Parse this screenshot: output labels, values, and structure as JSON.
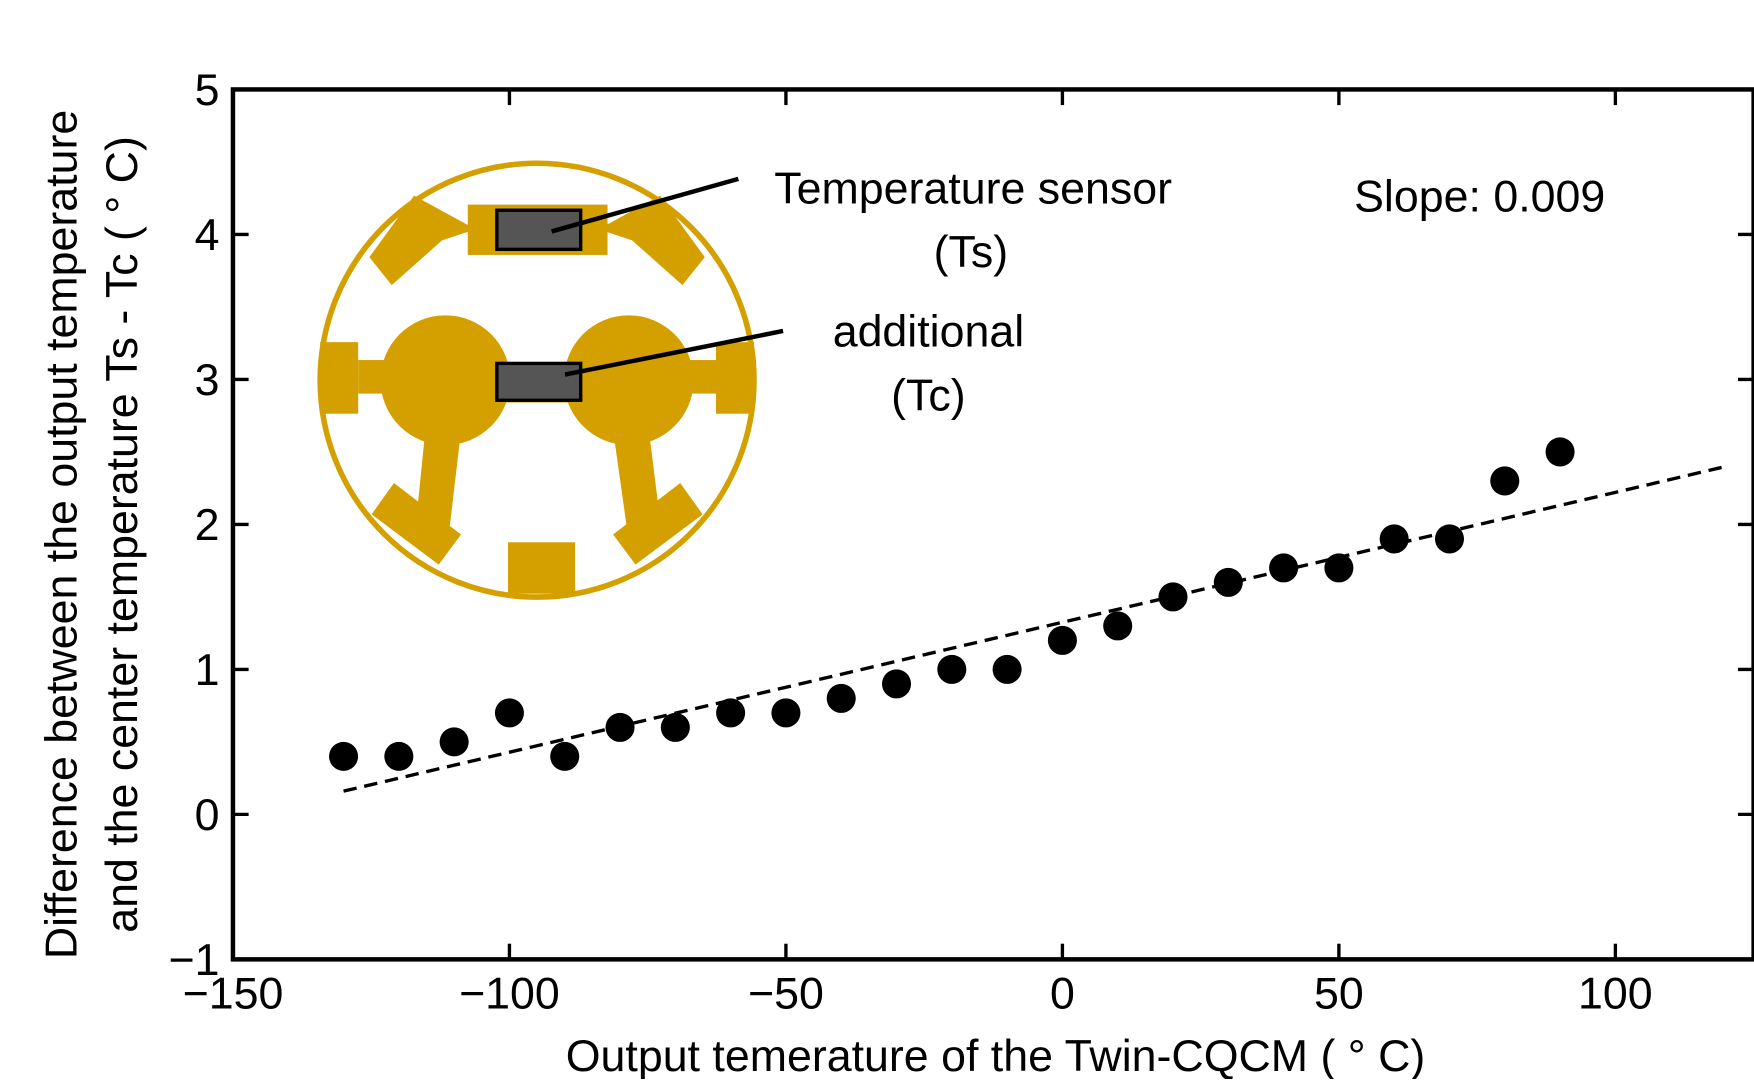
{
  "chart_data": {
    "type": "scatter",
    "x_label": "Output temerature of the Twin-CQCM ( ° C)",
    "y_label": [
      "Difference between the output temperature",
      "and the center temperature Ts - Tc ( ° C)"
    ],
    "annotations": [
      "Temperature sensor",
      "(Ts)",
      "additional",
      "(Tc)",
      "Slope: 0.009"
    ],
    "x": [
      -130,
      -120,
      -110,
      -100,
      -90,
      -80,
      -70,
      -60,
      -50,
      -40,
      -30,
      -20,
      -10,
      0,
      10,
      20,
      30,
      40,
      50,
      60,
      70,
      80,
      90
    ],
    "series": [
      {
        "color": "#000000",
        "values": [
          0.4,
          0.4,
          0.5,
          0.7,
          0.4,
          0.6,
          0.6,
          0.7,
          0.7,
          0.8,
          0.9,
          1.0,
          1.0,
          1.2,
          1.3,
          1.5,
          1.6,
          1.7,
          1.7,
          1.9,
          1.9,
          2.3,
          2.5
        ]
      }
    ],
    "fit": {
      "color": "#000000",
      "x": [
        -130,
        120
      ],
      "values": [
        0.16,
        2.4
      ]
    },
    "xlim": [
      -150,
      125
    ],
    "ylim": [
      -1,
      5
    ],
    "xticks": [
      {
        "value": -150,
        "label": "−150"
      },
      {
        "value": -100,
        "label": "−100"
      },
      {
        "value": -50,
        "label": "−50"
      },
      0,
      50,
      100
    ],
    "yticks": [
      {
        "value": -1,
        "label": "−1"
      },
      0,
      1,
      2,
      3,
      4,
      5
    ]
  }
}
